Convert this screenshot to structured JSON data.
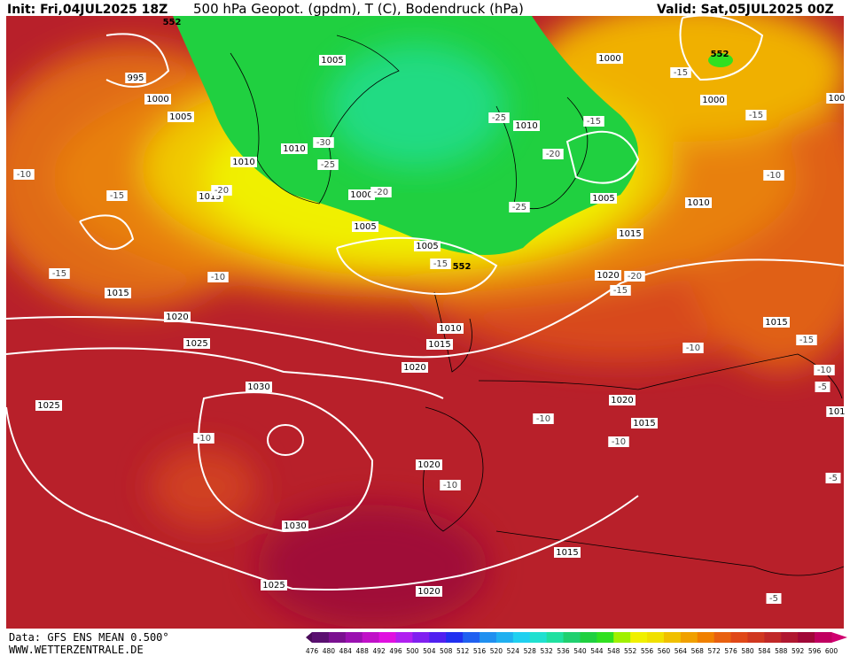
{
  "header": {
    "init": "Init: Fri,04JUL2025 18Z",
    "title": "500 hPa Geopot. (gpdm), T (C), Bodendruck (hPa)",
    "valid": "Valid: Sat,05JUL2025 00Z"
  },
  "isobars": [
    "995",
    "1000",
    "1005",
    "1005",
    "1010",
    "1010",
    "1015",
    "1000",
    "1005",
    "1005",
    "1010",
    "1000",
    "1000",
    "1005",
    "1010",
    "1015",
    "1020",
    "1015",
    "1020",
    "1025",
    "1030",
    "1025",
    "1015",
    "1010",
    "1015",
    "1020",
    "1020",
    "1015",
    "1020",
    "1030",
    "1015",
    "1025",
    "1020",
    "100",
    "101"
  ],
  "temperature_labels": [
    "-10",
    "-15",
    "-15",
    "-10",
    "-20",
    "-30",
    "-25",
    "-20",
    "-25",
    "-15",
    "-20",
    "-25",
    "-15",
    "-20",
    "-15",
    "-15",
    "-15",
    "-10",
    "-10",
    "-15",
    "-10",
    "-5",
    "-10",
    "-10",
    "-10",
    "-10",
    "-5",
    "-5"
  ],
  "geopotential_labels": [
    "552",
    "552",
    "552"
  ],
  "footer": {
    "source": "Data: GFS ENS MEAN 0.500°",
    "site": "WWW.WETTERZENTRALE.DE"
  },
  "colorbar": {
    "labels": [
      476,
      480,
      484,
      488,
      492,
      496,
      500,
      504,
      508,
      512,
      516,
      520,
      524,
      528,
      532,
      536,
      540,
      544,
      548,
      552,
      556,
      560,
      564,
      568,
      572,
      576,
      580,
      584,
      588,
      592,
      596,
      600
    ],
    "colors": [
      "#5a1070",
      "#7a1090",
      "#9a10b0",
      "#c010c8",
      "#e010e0",
      "#b020f0",
      "#8020f0",
      "#5020f0",
      "#2030f0",
      "#2060f0",
      "#2090f0",
      "#20b0f0",
      "#20d0f0",
      "#20e0d0",
      "#20e0a0",
      "#20d070",
      "#20d040",
      "#30e020",
      "#a0f000",
      "#f0f000",
      "#f0e000",
      "#f0c000",
      "#f0a000",
      "#f08000",
      "#e86010",
      "#e04818",
      "#d03820",
      "#c02828",
      "#b01830",
      "#a00838",
      "#c00060"
    ]
  }
}
